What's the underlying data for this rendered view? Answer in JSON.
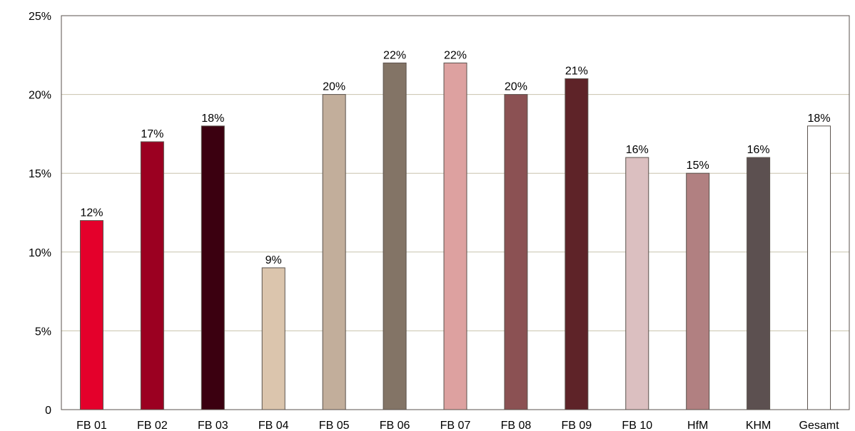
{
  "chart_data": {
    "type": "bar",
    "categories": [
      "FB 01",
      "FB 02",
      "FB 03",
      "FB 04",
      "FB 05",
      "FB 06",
      "FB 07",
      "FB 08",
      "FB 09",
      "FB 10",
      "HfM",
      "KHM",
      "Gesamt"
    ],
    "values": [
      12,
      17,
      18,
      9,
      20,
      22,
      22,
      20,
      21,
      16,
      15,
      16,
      18
    ],
    "value_labels": [
      "12%",
      "17%",
      "18%",
      "9%",
      "20%",
      "22%",
      "22%",
      "20%",
      "21%",
      "16%",
      "15%",
      "16%",
      "18%"
    ],
    "colors": [
      "#e4002b",
      "#9b0021",
      "#3b0010",
      "#dbc5ad",
      "#c2ae9b",
      "#837466",
      "#dda1a0",
      "#8b5153",
      "#5e2328",
      "#dbbfc0",
      "#b18081",
      "#5c5050",
      "#ffffff"
    ],
    "ylim": [
      0,
      25
    ],
    "y_ticks": [
      0,
      5,
      10,
      15,
      20,
      25
    ],
    "y_tick_labels": [
      "0",
      "5%",
      "10%",
      "15%",
      "20%",
      "25%"
    ],
    "grid": true,
    "grid_color": "#c8c2ad",
    "bar_outline_color": "#5a524c"
  }
}
